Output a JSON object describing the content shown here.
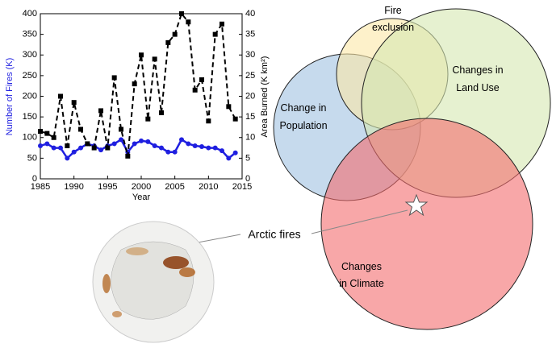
{
  "chart_data": {
    "type": "line",
    "x": [
      1985,
      1986,
      1987,
      1988,
      1989,
      1990,
      1991,
      1992,
      1993,
      1994,
      1995,
      1996,
      1997,
      1998,
      1999,
      2000,
      2001,
      2002,
      2003,
      2004,
      2005,
      2006,
      2007,
      2008,
      2009,
      2010,
      2011,
      2012,
      2013,
      2014
    ],
    "xlabel": "Year",
    "ylabel": "Number of Fires (K)",
    "y2label": "Area Burned (K km²)",
    "xlim": [
      1985,
      2015
    ],
    "xticks": [
      1985,
      1990,
      1995,
      2000,
      2005,
      2010,
      2015
    ],
    "ylim": [
      0,
      400
    ],
    "yticks": [
      0,
      50,
      100,
      150,
      200,
      250,
      300,
      350,
      400
    ],
    "y2lim": [
      0,
      40
    ],
    "y2ticks": [
      0,
      5,
      10,
      15,
      20,
      25,
      30,
      35,
      40
    ],
    "grid": false,
    "series": [
      {
        "color": "#1f1fe0",
        "values": [
          80,
          85,
          75,
          75,
          50,
          65,
          75,
          85,
          80,
          70,
          80,
          85,
          95,
          65,
          85,
          92,
          90,
          80,
          75,
          65,
          65,
          95,
          85,
          80,
          78,
          75,
          75,
          68,
          50,
          63
        ]
      },
      {
        "color": "#000000",
        "axis": "y2",
        "values": [
          11.5,
          11,
          10,
          20,
          8,
          18.5,
          12,
          8.5,
          7.5,
          16.5,
          7.5,
          24.5,
          12,
          5.5,
          23,
          30,
          14.5,
          29,
          16,
          33,
          35,
          40,
          38,
          21.5,
          24,
          14,
          35,
          37.5,
          17.5,
          14.5
        ]
      }
    ]
  },
  "diagram": {
    "circles": [
      {
        "label": [
          "Fire",
          "exclusion"
        ]
      },
      {
        "label": [
          "Changes in",
          "Land Use"
        ]
      },
      {
        "label": [
          "Change in",
          "Population"
        ]
      },
      {
        "label": [
          "Changes",
          "in Climate"
        ]
      }
    ],
    "callout": "Arctic fires"
  }
}
